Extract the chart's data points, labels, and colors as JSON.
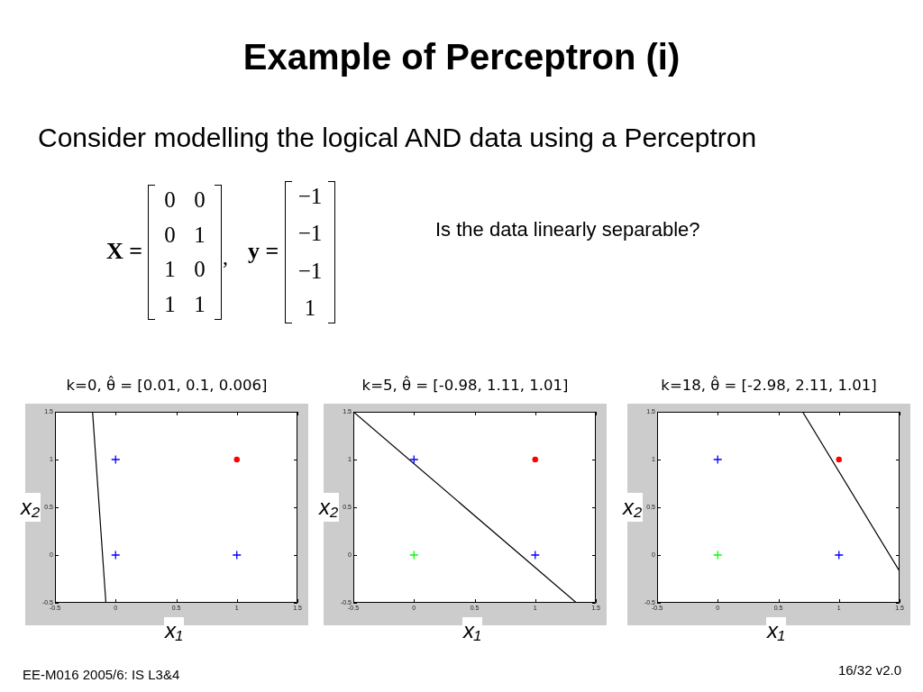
{
  "chart_data": [
    {
      "type": "other",
      "title": "Example of Perceptron (i)",
      "subtitle": "Consider modelling the logical AND data using a Perceptron",
      "annotations": [
        "X =",
        "0 0\n0 1\n1 0\n1 1",
        ",",
        "y =",
        "−1\n−1\n−1\n1",
        "Is the data linearly separable?",
        "EE-M016 2005/6: IS L3&4",
        "16/32 v2.0"
      ]
    },
    {
      "type": "scatter",
      "title": "k=0, θ̂ = [0.01, 0.1, 0.006]",
      "xlabel": "x₁",
      "ylabel": "x₂",
      "xlim": [
        -0.5,
        1.5
      ],
      "ylim": [
        -0.5,
        1.5
      ],
      "xticks": [
        -0.5,
        0,
        0.5,
        1,
        1.5
      ],
      "yticks": [
        -0.5,
        0,
        0.5,
        1,
        1.5
      ],
      "series": [
        {
          "color": "#0000ff",
          "marker": "cross",
          "x": [
            0,
            0,
            1
          ],
          "values": [
            1,
            0,
            0
          ]
        },
        {
          "color": "#ff0000",
          "marker": "circle",
          "x": [
            1
          ],
          "values": [
            1
          ]
        },
        {
          "type": "line",
          "color": "#000000",
          "marker": "none",
          "x": [
            -0.19,
            -0.08
          ],
          "values": [
            1.5,
            -0.5
          ]
        }
      ]
    },
    {
      "type": "scatter",
      "title": "k=5, θ̂ = [-0.98, 1.11, 1.01]",
      "xlabel": "x₁",
      "ylabel": "x₂",
      "xlim": [
        -0.5,
        1.5
      ],
      "ylim": [
        -0.5,
        1.5
      ],
      "xticks": [
        -0.5,
        0,
        0.5,
        1,
        1.5
      ],
      "yticks": [
        -0.5,
        0,
        0.5,
        1,
        1.5
      ],
      "series": [
        {
          "color": "#0000ff",
          "marker": "cross",
          "x": [
            0,
            1
          ],
          "values": [
            1,
            0
          ]
        },
        {
          "color": "#00ff00",
          "marker": "cross",
          "x": [
            0
          ],
          "values": [
            0
          ]
        },
        {
          "color": "#ff0000",
          "marker": "circle",
          "x": [
            1
          ],
          "values": [
            1
          ]
        },
        {
          "type": "line",
          "color": "#000000",
          "marker": "none",
          "x": [
            -0.5,
            1.34
          ],
          "values": [
            1.5,
            -0.5
          ]
        }
      ]
    },
    {
      "type": "scatter",
      "title": "k=18, θ̂ = [-2.98, 2.11, 1.01]",
      "xlabel": "x₁",
      "ylabel": "x₂",
      "xlim": [
        -0.5,
        1.5
      ],
      "ylim": [
        -0.5,
        1.5
      ],
      "xticks": [
        -0.5,
        0,
        0.5,
        1,
        1.5
      ],
      "yticks": [
        -0.5,
        0,
        0.5,
        1,
        1.5
      ],
      "series": [
        {
          "color": "#0000ff",
          "marker": "cross",
          "x": [
            0,
            1
          ],
          "values": [
            1,
            0
          ]
        },
        {
          "color": "#00ff00",
          "marker": "cross",
          "x": [
            0
          ],
          "values": [
            0
          ]
        },
        {
          "color": "#ff0000",
          "marker": "circle",
          "x": [
            1
          ],
          "values": [
            1
          ]
        },
        {
          "type": "line",
          "color": "#000000",
          "marker": "none",
          "x": [
            0.7,
            1.5
          ],
          "values": [
            1.5,
            -0.17
          ]
        }
      ]
    }
  ]
}
